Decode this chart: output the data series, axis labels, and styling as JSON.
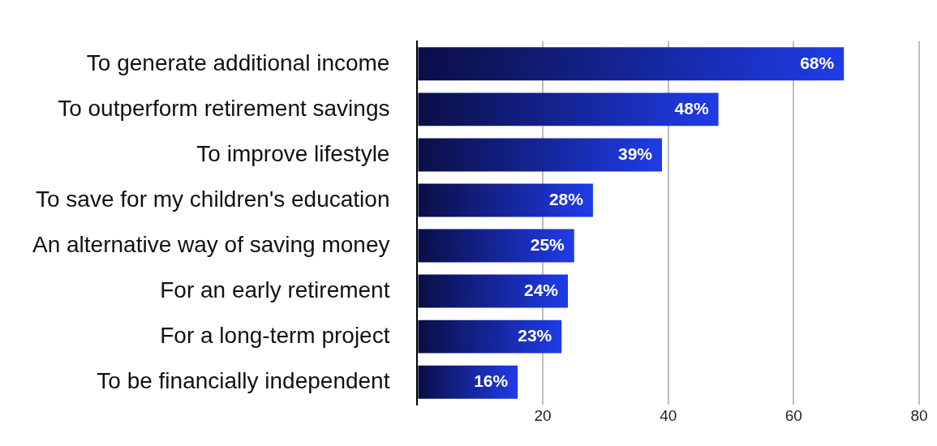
{
  "chart_data": {
    "type": "bar",
    "orientation": "horizontal",
    "categories": [
      "To generate additional income",
      "To outperform retirement savings",
      "To improve lifestyle",
      "To save for my children's education",
      "An alternative way of saving money",
      "For an early retirement",
      "For a long-term project",
      "To be financially independent"
    ],
    "values": [
      68,
      48,
      39,
      28,
      25,
      24,
      23,
      16
    ],
    "value_labels": [
      "68%",
      "48%",
      "39%",
      "28%",
      "25%",
      "24%",
      "23%",
      "16%"
    ],
    "color": "#1f3ce8",
    "xlim": [
      0,
      80
    ],
    "xticks": [
      {
        "value": 0,
        "label": null
      },
      20,
      40,
      60,
      80
    ],
    "grid": "x",
    "legend": false
  }
}
